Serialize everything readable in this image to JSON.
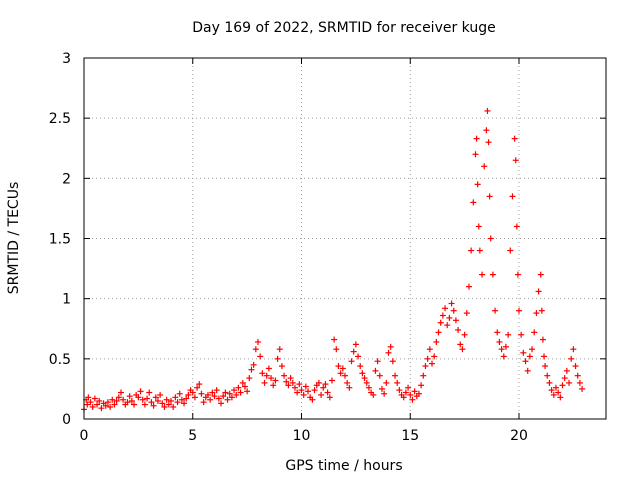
{
  "chart_data": {
    "type": "scatter",
    "title": "Day 169 of 2022, SRMTID for receiver kuge",
    "xlabel": "GPS time / hours",
    "ylabel": "SRMTID / TECUs",
    "xlim": [
      0,
      24
    ],
    "ylim": [
      0,
      3
    ],
    "xticks": [
      0,
      5,
      10,
      15,
      20
    ],
    "xtick_labels": [
      "0",
      "5",
      "10",
      "15",
      "20"
    ],
    "yticks": [
      0,
      0.5,
      1,
      1.5,
      2,
      2.5,
      3
    ],
    "ytick_labels": [
      "0",
      "0.5",
      "1",
      "1.5",
      "2",
      "2.5",
      "3"
    ],
    "grid": true,
    "marker": "+",
    "color": "#ff0000",
    "series": [
      {
        "name": "SRMTID",
        "x": [
          0.0,
          0.1,
          0.15,
          0.2,
          0.3,
          0.4,
          0.5,
          0.6,
          0.7,
          0.8,
          0.9,
          1.0,
          1.1,
          1.2,
          1.3,
          1.4,
          1.5,
          1.6,
          1.7,
          1.8,
          1.9,
          2.0,
          2.1,
          2.2,
          2.3,
          2.4,
          2.5,
          2.6,
          2.7,
          2.8,
          2.9,
          3.0,
          3.1,
          3.2,
          3.3,
          3.4,
          3.5,
          3.6,
          3.7,
          3.8,
          3.9,
          4.0,
          4.1,
          4.2,
          4.3,
          4.4,
          4.5,
          4.6,
          4.7,
          4.8,
          4.9,
          5.0,
          5.1,
          5.2,
          5.3,
          5.4,
          5.5,
          5.6,
          5.7,
          5.8,
          5.9,
          6.0,
          6.1,
          6.2,
          6.3,
          6.4,
          6.5,
          6.6,
          6.7,
          6.8,
          6.9,
          7.0,
          7.1,
          7.2,
          7.3,
          7.4,
          7.5,
          7.6,
          7.7,
          7.8,
          7.9,
          8.0,
          8.1,
          8.2,
          8.3,
          8.4,
          8.5,
          8.6,
          8.7,
          8.8,
          8.9,
          9.0,
          9.1,
          9.2,
          9.3,
          9.4,
          9.5,
          9.6,
          9.7,
          9.8,
          9.9,
          10.0,
          10.1,
          10.2,
          10.3,
          10.4,
          10.5,
          10.6,
          10.7,
          10.8,
          10.9,
          11.0,
          11.1,
          11.2,
          11.3,
          11.4,
          11.5,
          11.6,
          11.7,
          11.8,
          11.9,
          12.0,
          12.1,
          12.2,
          12.3,
          12.4,
          12.5,
          12.6,
          12.7,
          12.8,
          12.9,
          13.0,
          13.1,
          13.2,
          13.3,
          13.4,
          13.5,
          13.6,
          13.7,
          13.8,
          13.9,
          14.0,
          14.1,
          14.2,
          14.3,
          14.4,
          14.5,
          14.6,
          14.7,
          14.8,
          14.9,
          15.0,
          15.1,
          15.2,
          15.3,
          15.4,
          15.5,
          15.6,
          15.7,
          15.8,
          15.9,
          16.0,
          16.1,
          16.2,
          16.3,
          16.4,
          16.5,
          16.6,
          16.7,
          16.8,
          16.9,
          17.0,
          17.1,
          17.2,
          17.3,
          17.4,
          17.5,
          17.6,
          17.7,
          17.8,
          17.9,
          18.0,
          18.05,
          18.1,
          18.15,
          18.2,
          18.3,
          18.4,
          18.5,
          18.55,
          18.6,
          18.65,
          18.7,
          18.8,
          18.9,
          19.0,
          19.1,
          19.2,
          19.3,
          19.4,
          19.5,
          19.6,
          19.7,
          19.8,
          19.85,
          19.9,
          19.95,
          20.0,
          20.1,
          20.2,
          20.3,
          20.4,
          20.5,
          20.6,
          20.7,
          20.8,
          20.9,
          21.0,
          21.05,
          21.1,
          21.15,
          21.2,
          21.3,
          21.4,
          21.5,
          21.6,
          21.7,
          21.8,
          21.9,
          22.0,
          22.1,
          22.2,
          22.3,
          22.4,
          22.5,
          22.6,
          22.7,
          22.8,
          22.9
        ],
        "y": [
          0.08,
          0.16,
          0.12,
          0.18,
          0.14,
          0.1,
          0.17,
          0.12,
          0.15,
          0.09,
          0.13,
          0.11,
          0.14,
          0.1,
          0.16,
          0.12,
          0.15,
          0.18,
          0.22,
          0.16,
          0.12,
          0.14,
          0.19,
          0.15,
          0.12,
          0.2,
          0.18,
          0.23,
          0.16,
          0.12,
          0.17,
          0.22,
          0.14,
          0.11,
          0.18,
          0.15,
          0.2,
          0.13,
          0.1,
          0.16,
          0.12,
          0.15,
          0.1,
          0.18,
          0.14,
          0.21,
          0.16,
          0.13,
          0.17,
          0.2,
          0.24,
          0.22,
          0.18,
          0.26,
          0.29,
          0.21,
          0.14,
          0.18,
          0.2,
          0.16,
          0.22,
          0.19,
          0.24,
          0.17,
          0.13,
          0.19,
          0.22,
          0.16,
          0.21,
          0.18,
          0.24,
          0.2,
          0.26,
          0.22,
          0.3,
          0.27,
          0.23,
          0.34,
          0.41,
          0.45,
          0.58,
          0.64,
          0.52,
          0.38,
          0.3,
          0.36,
          0.42,
          0.34,
          0.28,
          0.32,
          0.5,
          0.58,
          0.44,
          0.36,
          0.31,
          0.28,
          0.34,
          0.3,
          0.26,
          0.22,
          0.29,
          0.24,
          0.2,
          0.27,
          0.23,
          0.18,
          0.16,
          0.24,
          0.28,
          0.3,
          0.2,
          0.26,
          0.29,
          0.22,
          0.18,
          0.32,
          0.66,
          0.58,
          0.44,
          0.38,
          0.42,
          0.36,
          0.3,
          0.26,
          0.48,
          0.56,
          0.62,
          0.52,
          0.44,
          0.38,
          0.34,
          0.3,
          0.26,
          0.22,
          0.2,
          0.4,
          0.48,
          0.36,
          0.25,
          0.21,
          0.3,
          0.55,
          0.6,
          0.48,
          0.36,
          0.3,
          0.24,
          0.2,
          0.18,
          0.22,
          0.26,
          0.2,
          0.16,
          0.23,
          0.19,
          0.21,
          0.28,
          0.36,
          0.44,
          0.5,
          0.58,
          0.46,
          0.52,
          0.64,
          0.72,
          0.8,
          0.86,
          0.92,
          0.78,
          0.84,
          0.96,
          0.9,
          0.82,
          0.74,
          0.62,
          0.58,
          0.7,
          0.88,
          1.1,
          1.4,
          1.8,
          2.2,
          2.33,
          1.95,
          1.6,
          1.4,
          1.2,
          2.1,
          2.4,
          2.56,
          2.3,
          1.85,
          1.5,
          1.2,
          0.9,
          0.72,
          0.64,
          0.58,
          0.52,
          0.6,
          0.7,
          1.4,
          1.85,
          2.33,
          2.15,
          1.6,
          1.2,
          0.9,
          0.7,
          0.55,
          0.48,
          0.4,
          0.52,
          0.58,
          0.72,
          0.88,
          1.06,
          1.2,
          0.9,
          0.66,
          0.52,
          0.44,
          0.36,
          0.3,
          0.24,
          0.2,
          0.26,
          0.22,
          0.18,
          0.28,
          0.34,
          0.4,
          0.3,
          0.5,
          0.58,
          0.44,
          0.36,
          0.3,
          0.25
        ]
      }
    ]
  }
}
